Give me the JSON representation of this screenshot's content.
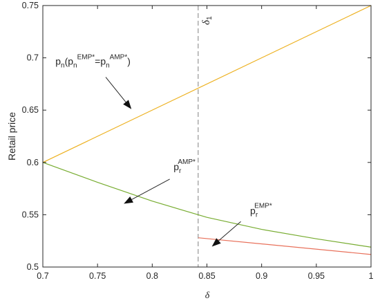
{
  "chart_data": {
    "type": "line",
    "xlabel": "δ",
    "ylabel": "Retail price",
    "xlim": [
      0.7,
      1.0
    ],
    "ylim": [
      0.5,
      0.75
    ],
    "xticks": [
      0.7,
      0.75,
      0.8,
      0.85,
      0.9,
      0.95,
      1
    ],
    "xtick_labels": [
      "0.7",
      "0.75",
      "0.8",
      "0.85",
      "0.9",
      "0.95",
      "1"
    ],
    "yticks": [
      0.5,
      0.55,
      0.6,
      0.65,
      0.7,
      0.75
    ],
    "ytick_labels": [
      "0.5",
      "0.55",
      "0.6",
      "0.65",
      "0.7",
      "0.75"
    ],
    "grid": false,
    "series": [
      {
        "color": "#EDB120",
        "x": [
          0.7,
          1.0
        ],
        "values": [
          0.6,
          0.75
        ]
      },
      {
        "color": "#77AC30",
        "x": [
          0.7,
          0.75,
          0.8,
          0.85,
          0.9,
          0.95,
          1.0
        ],
        "values": [
          0.6,
          0.581,
          0.563,
          0.5475,
          0.536,
          0.527,
          0.519
        ]
      },
      {
        "color": "#E8705A",
        "x": [
          0.842,
          1.0
        ],
        "values": [
          0.528,
          0.512
        ]
      }
    ],
    "vline": {
      "x": 0.842,
      "label_main": "δ",
      "label_sub": "1",
      "style": "dashed",
      "color": "#808080"
    },
    "annotations": [
      {
        "id": "pn",
        "base": "p",
        "base_sub": "n",
        "mid1": "(p",
        "mid1_sub": "n",
        "sup1": "EMP*",
        "eq": "=p",
        "eq_sub": "n",
        "sup2": "AMP*",
        "close": ")",
        "text_x": 0.7115,
        "text_y": 0.6935,
        "arrow_from": [
          0.7575,
          0.6815
        ],
        "arrow_to": [
          0.781,
          0.651
        ]
      },
      {
        "id": "pr-amp",
        "base": "p",
        "base_sub": "r",
        "sup": "AMP*",
        "text_x": 0.8195,
        "text_y": 0.5925,
        "arrow_from": [
          0.816,
          0.584
        ],
        "arrow_to": [
          0.774,
          0.5605
        ]
      },
      {
        "id": "pr-emp",
        "base": "p",
        "base_sub": "r",
        "sup": "EMP*",
        "text_x": 0.8895,
        "text_y": 0.5505,
        "arrow_from": [
          0.881,
          0.5435
        ],
        "arrow_to": [
          0.8545,
          0.5195
        ]
      }
    ]
  }
}
